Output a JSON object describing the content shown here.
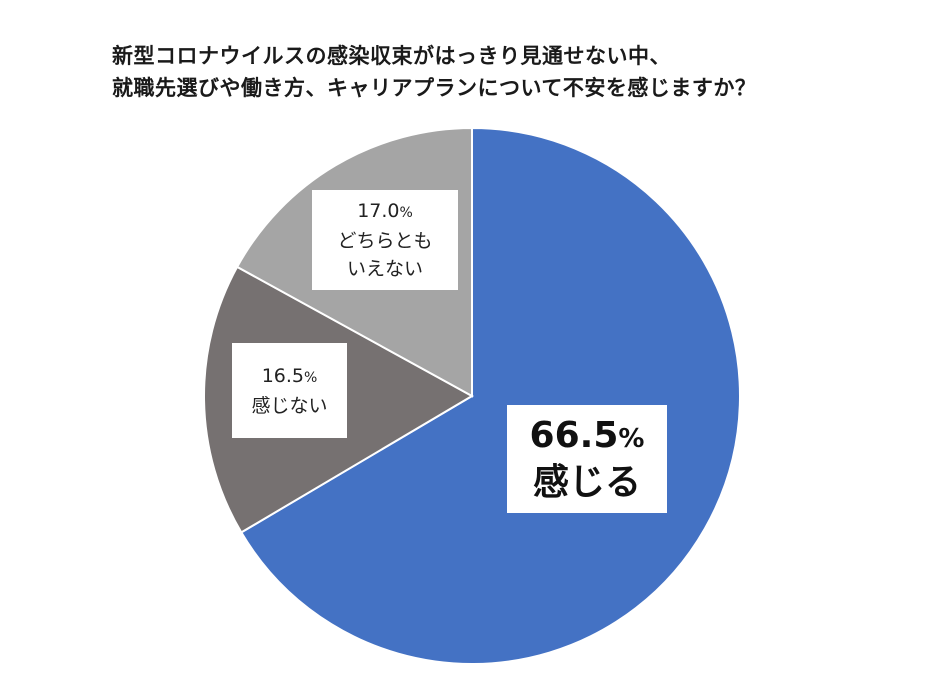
{
  "chart_data": {
    "type": "pie",
    "title_lines": [
      "新型コロナウイルスの感染収束がはっきり見通せない中、",
      "就職先選びや働き方、キャリアプランについて不安を感じますか？"
    ],
    "slices": [
      {
        "label": "感じる",
        "value": 66.5,
        "value_text": "66.5",
        "color": "#4472C4"
      },
      {
        "label": "感じない",
        "value": 16.5,
        "value_text": "16.5",
        "color": "#767171"
      },
      {
        "label_lines": [
          "どちらとも",
          "いえない"
        ],
        "value": 17.0,
        "value_text": "17.0",
        "color": "#A5A5A5"
      }
    ],
    "percent_sign": "%",
    "start_angle": "12 o'clock",
    "direction": "clockwise",
    "legend": "none"
  }
}
